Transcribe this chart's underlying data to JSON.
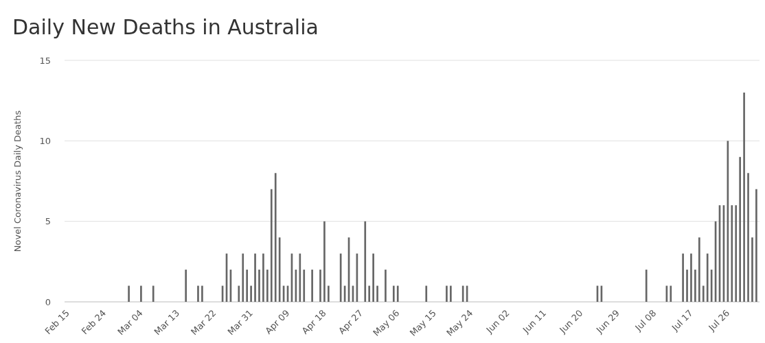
{
  "chart_data": {
    "type": "bar",
    "title": "Daily New Deaths in Australia",
    "ylabel": "Novel Coronavirus Daily Deaths",
    "categories": [
      "Feb 15",
      null,
      null,
      null,
      null,
      null,
      null,
      null,
      null,
      "Feb 24",
      null,
      null,
      null,
      null,
      null,
      null,
      null,
      null,
      "Mar 04",
      null,
      null,
      null,
      null,
      null,
      null,
      null,
      null,
      "Mar 13",
      null,
      null,
      null,
      null,
      null,
      null,
      null,
      null,
      "Mar 22",
      null,
      null,
      null,
      null,
      null,
      null,
      null,
      null,
      "Mar 31",
      null,
      null,
      null,
      null,
      null,
      null,
      null,
      null,
      "Apr 09",
      null,
      null,
      null,
      null,
      null,
      null,
      null,
      null,
      "Apr 18",
      null,
      null,
      null,
      null,
      null,
      null,
      null,
      null,
      "Apr 27",
      null,
      null,
      null,
      null,
      null,
      null,
      null,
      null,
      "May 06",
      null,
      null,
      null,
      null,
      null,
      null,
      null,
      null,
      "May 15",
      null,
      null,
      null,
      null,
      null,
      null,
      null,
      null,
      "May 24",
      null,
      null,
      null,
      null,
      null,
      null,
      null,
      null,
      "Jun 02",
      null,
      null,
      null,
      null,
      null,
      null,
      null,
      null,
      "Jun 11",
      null,
      null,
      null,
      null,
      null,
      null,
      null,
      null,
      "Jun 20",
      null,
      null,
      null,
      null,
      null,
      null,
      null,
      null,
      "Jun 29",
      null,
      null,
      null,
      null,
      null,
      null,
      null,
      null,
      "Jul 08",
      null,
      null,
      null,
      null,
      null,
      null,
      null,
      null,
      "Jul 17",
      null,
      null,
      null,
      null,
      null,
      null,
      null,
      null,
      "Jul 26",
      null,
      null,
      null,
      null,
      null,
      null,
      null
    ],
    "values": [
      0,
      0,
      0,
      0,
      0,
      0,
      0,
      0,
      0,
      0,
      0,
      0,
      0,
      0,
      0,
      1,
      0,
      0,
      1,
      0,
      0,
      1,
      0,
      0,
      0,
      0,
      0,
      0,
      0,
      2,
      0,
      0,
      1,
      1,
      0,
      0,
      0,
      0,
      1,
      3,
      2,
      0,
      1,
      3,
      2,
      1,
      3,
      2,
      3,
      2,
      7,
      8,
      4,
      1,
      1,
      3,
      2,
      3,
      2,
      0,
      2,
      0,
      2,
      5,
      1,
      0,
      0,
      3,
      1,
      4,
      1,
      3,
      0,
      5,
      1,
      3,
      1,
      0,
      2,
      0,
      1,
      1,
      0,
      0,
      0,
      0,
      0,
      0,
      1,
      0,
      0,
      0,
      0,
      1,
      1,
      0,
      0,
      1,
      1,
      0,
      0,
      0,
      0,
      0,
      0,
      0,
      0,
      0,
      0,
      0,
      0,
      0,
      0,
      0,
      0,
      0,
      0,
      0,
      0,
      0,
      0,
      0,
      0,
      0,
      0,
      0,
      0,
      0,
      0,
      0,
      1,
      1,
      0,
      0,
      0,
      0,
      0,
      0,
      0,
      0,
      0,
      0,
      2,
      0,
      0,
      0,
      0,
      1,
      1,
      0,
      0,
      3,
      2,
      3,
      2,
      4,
      1,
      3,
      2,
      5,
      6,
      6,
      10,
      6,
      6,
      9,
      13,
      8,
      4,
      7
    ],
    "color": "#666666",
    "ylim": [
      0,
      15
    ],
    "yticks": [
      0,
      5,
      10,
      15
    ],
    "grid": "y"
  }
}
